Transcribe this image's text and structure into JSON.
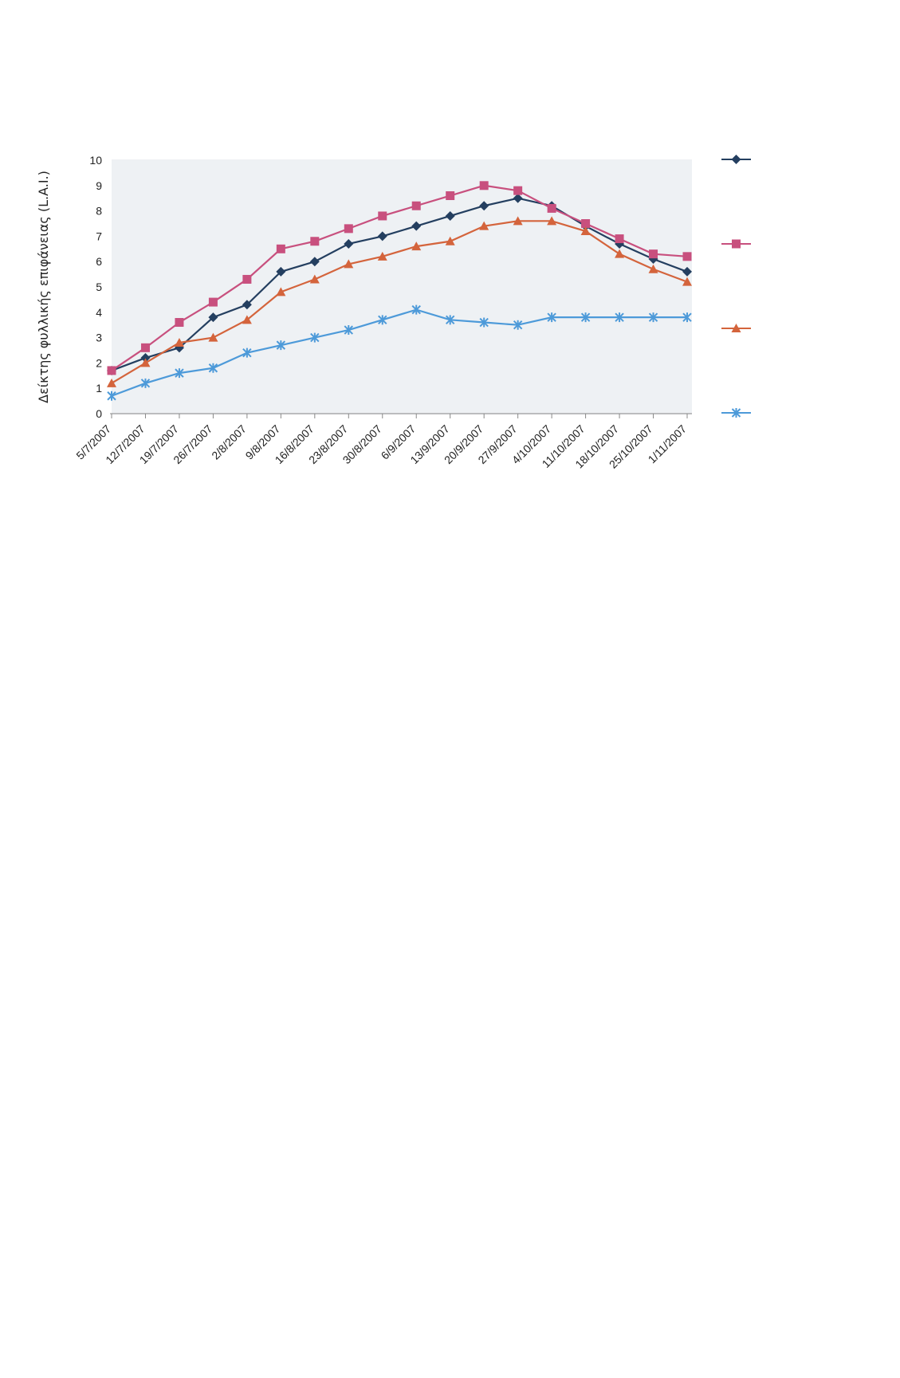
{
  "chart_data": {
    "type": "line",
    "title": "",
    "xlabel": "",
    "ylabel": "Δείκτης φυλλικής επιφάνειας (L.A.I.)",
    "ylim": [
      0,
      10
    ],
    "yticks": [
      0,
      1,
      2,
      3,
      4,
      5,
      6,
      7,
      8,
      9,
      10
    ],
    "grid": false,
    "legend": "right",
    "categories": [
      "5/7/2007",
      "12/7/2007",
      "19/7/2007",
      "26/7/2007",
      "2/8/2007",
      "9/8/2007",
      "16/8/2007",
      "23/8/2007",
      "30/8/2007",
      "6/9/2007",
      "13/9/2007",
      "20/9/2007",
      "27/9/2007",
      "4/10/2007",
      "11/10/2007",
      "18/10/2007",
      "25/10/2007",
      "1/11/2007"
    ],
    "series": [
      {
        "color": "#243f60",
        "marker": "diamond",
        "values": [
          1.7,
          2.2,
          2.6,
          3.8,
          4.3,
          5.6,
          6.0,
          6.7,
          7.0,
          7.4,
          7.8,
          8.2,
          8.5,
          8.2,
          7.4,
          6.7,
          6.1,
          5.6
        ]
      },
      {
        "color": "#c8507e",
        "marker": "square",
        "values": [
          1.7,
          2.6,
          3.6,
          4.4,
          5.3,
          6.5,
          6.8,
          7.3,
          7.8,
          8.2,
          8.6,
          9.0,
          8.8,
          8.1,
          7.5,
          6.9,
          6.3,
          6.2
        ]
      },
      {
        "color": "#d4643c",
        "marker": "triangle",
        "values": [
          1.2,
          2.0,
          2.8,
          3.0,
          3.7,
          4.8,
          5.3,
          5.9,
          6.2,
          6.6,
          6.8,
          7.4,
          7.6,
          7.6,
          7.2,
          6.3,
          5.7,
          5.2
        ]
      },
      {
        "color": "#4d9ad9",
        "marker": "x",
        "values": [
          0.7,
          1.2,
          1.6,
          1.8,
          2.4,
          2.7,
          3.0,
          3.3,
          3.7,
          4.1,
          3.7,
          3.6,
          3.5,
          3.8,
          3.8,
          3.8,
          3.8,
          3.8
        ]
      }
    ]
  }
}
